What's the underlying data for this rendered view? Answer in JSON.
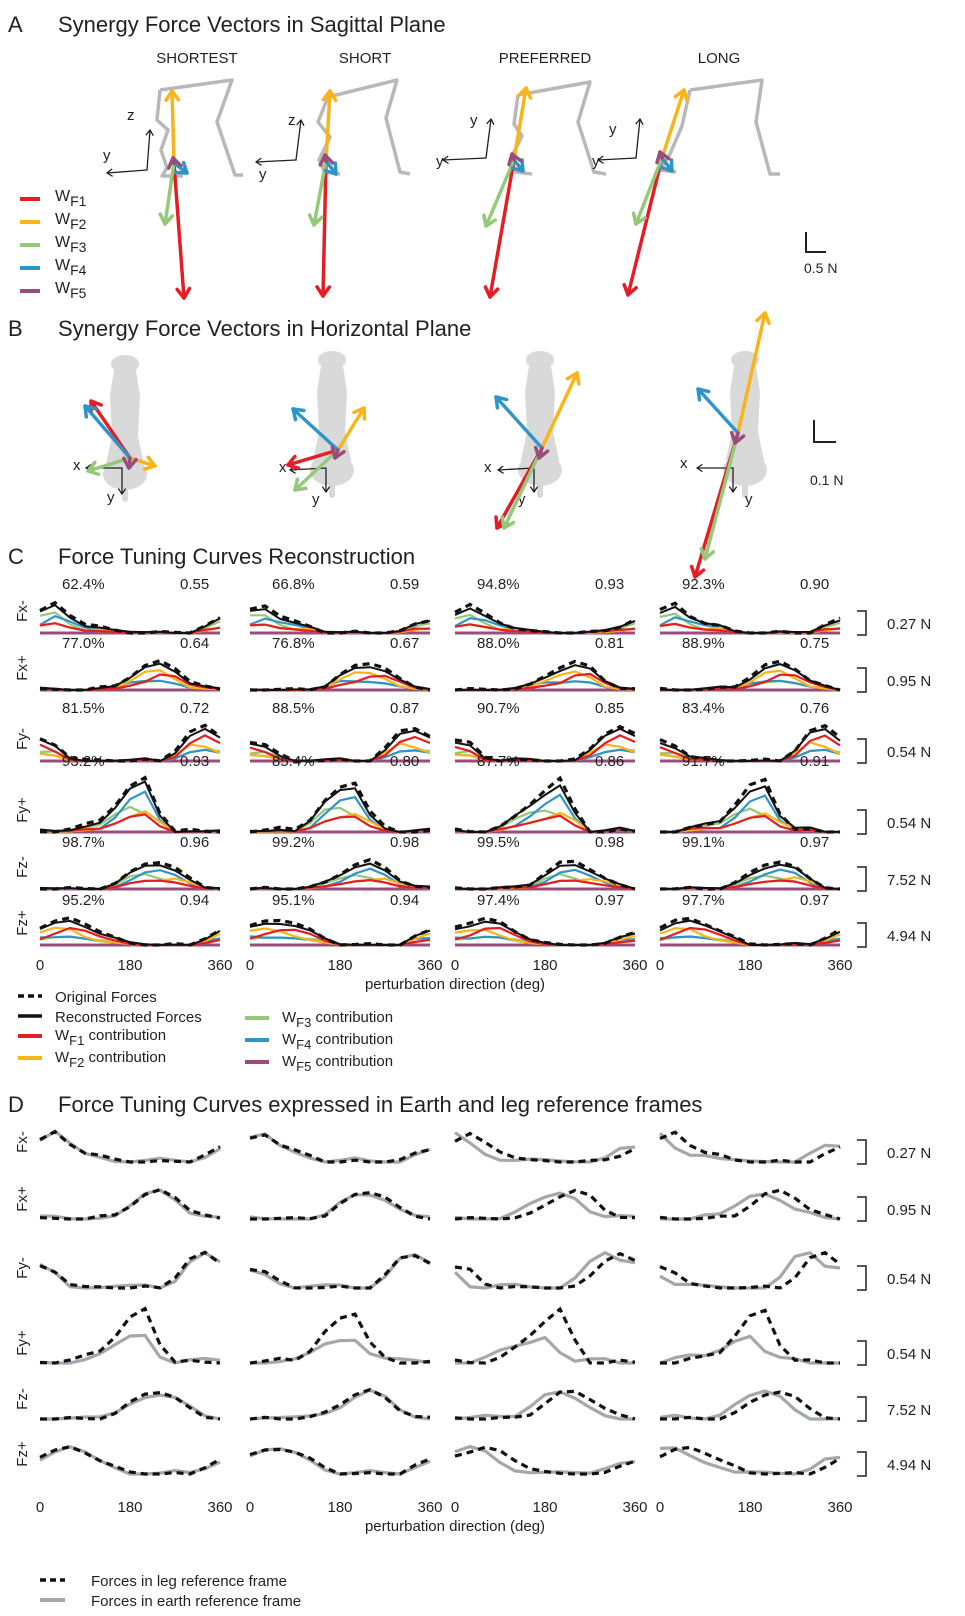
{
  "colors": {
    "WF1": "#e31e24",
    "WF2": "#f9b41a",
    "WF3": "#94c97a",
    "WF4": "#2f95c9",
    "WF5": "#9a4d7a",
    "skeleton": "#b8b8b8",
    "cat": "#d9d9d9",
    "original": "#111111",
    "earth": "#a2a8ad"
  },
  "panels": {
    "A": {
      "letter": "A",
      "title": "Synergy Force Vectors in Sagittal Plane"
    },
    "B": {
      "letter": "B",
      "title": "Synergy Force Vectors in Horizontal Plane"
    },
    "C": {
      "letter": "C",
      "title": "Force Tuning Curves Reconstruction"
    },
    "D": {
      "letter": "D",
      "title": "Force Tuning Curves expressed in Earth and leg reference frames"
    }
  },
  "conditions": [
    "SHORTEST",
    "SHORT",
    "PREFERRED",
    "LONG"
  ],
  "axes_labels": {
    "z": "z",
    "y": "y",
    "x": "x"
  },
  "scale_bars": {
    "A": "0.5 N",
    "B": "0.1 N"
  },
  "legend_A": [
    {
      "sub": "F1",
      "prefix": "W",
      "color_key": "WF1"
    },
    {
      "sub": "F2",
      "prefix": "W",
      "color_key": "WF2"
    },
    {
      "sub": "F3",
      "prefix": "W",
      "color_key": "WF3"
    },
    {
      "sub": "F4",
      "prefix": "W",
      "color_key": "WF4"
    },
    {
      "sub": "F5",
      "prefix": "W",
      "color_key": "WF5"
    }
  ],
  "rows": [
    "Fx-",
    "Fx+",
    "Fy-",
    "Fy+",
    "Fz-",
    "Fz+"
  ],
  "row_scales": [
    "0.27 N",
    "0.95 N",
    "0.54 N",
    "0.54 N",
    "7.52 N",
    "4.94 N"
  ],
  "x_ticks": [
    "0",
    "180",
    "360"
  ],
  "x_axis_label": "perturbation direction (deg)",
  "chart_data": {
    "type": "line",
    "x": [
      0,
      30,
      60,
      90,
      120,
      150,
      180,
      210,
      240,
      270,
      300,
      330,
      360
    ],
    "variance_accounted": [
      [
        "62.4%",
        "66.8%",
        "94.8%",
        "92.3%"
      ],
      [
        "77.0%",
        "76.8%",
        "88.0%",
        "88.9%"
      ],
      [
        "81.5%",
        "88.5%",
        "90.7%",
        "83.4%"
      ],
      [
        "93.2%",
        "85.4%",
        "87.7%",
        "91.7%"
      ],
      [
        "98.7%",
        "99.2%",
        "99.5%",
        "99.1%"
      ],
      [
        "95.2%",
        "95.1%",
        "97.4%",
        "97.7%"
      ]
    ],
    "correlation": [
      [
        "0.55",
        "0.59",
        "0.93",
        "0.90"
      ],
      [
        "0.64",
        "0.67",
        "0.81",
        "0.75"
      ],
      [
        "0.72",
        "0.87",
        "0.85",
        "0.76"
      ],
      [
        "0.93",
        "0.80",
        "0.86",
        "0.91"
      ],
      [
        "0.96",
        "0.98",
        "0.98",
        "0.97"
      ],
      [
        "0.94",
        "0.94",
        "0.97",
        "0.97"
      ]
    ],
    "profiles": {
      "Fx-": [
        0.75,
        0.95,
        0.6,
        0.35,
        0.2,
        0.05,
        0,
        0,
        0,
        0,
        0.05,
        0.25,
        0.45
      ],
      "Fx+": [
        0,
        0,
        0,
        0,
        0.05,
        0.15,
        0.5,
        0.85,
        1.0,
        0.8,
        0.35,
        0.1,
        0
      ],
      "Fy-": [
        0.6,
        0.5,
        0.15,
        0,
        0,
        0,
        0,
        0,
        0,
        0.35,
        0.85,
        1.0,
        0.75
      ],
      "Fy+": [
        0,
        0,
        0.05,
        0.1,
        0.25,
        0.55,
        0.85,
        1.0,
        0.4,
        0.05,
        0,
        0,
        0
      ],
      "Fz-": [
        0,
        0,
        0,
        0,
        0.05,
        0.2,
        0.55,
        0.9,
        1.0,
        0.75,
        0.35,
        0.1,
        0
      ],
      "Fz+": [
        0.7,
        0.9,
        1.0,
        0.85,
        0.55,
        0.25,
        0.05,
        0,
        0,
        0,
        0,
        0.3,
        0.55
      ]
    }
  },
  "legend_C": {
    "original": "Original Forces",
    "reconstructed": "Reconstructed Forces",
    "items": [
      {
        "prefix": "W",
        "sub": "F1",
        "suffix": " contribution",
        "color_key": "WF1"
      },
      {
        "prefix": "W",
        "sub": "F2",
        "suffix": " contribution",
        "color_key": "WF2"
      },
      {
        "prefix": "W",
        "sub": "F3",
        "suffix": " contribution",
        "color_key": "WF3"
      },
      {
        "prefix": "W",
        "sub": "F4",
        "suffix": " contribution",
        "color_key": "WF4"
      },
      {
        "prefix": "W",
        "sub": "F5",
        "suffix": "  contribution",
        "color_key": "WF5"
      }
    ]
  },
  "legend_D": {
    "leg": "Forces in leg reference frame",
    "earth": "Forces in earth reference frame"
  }
}
